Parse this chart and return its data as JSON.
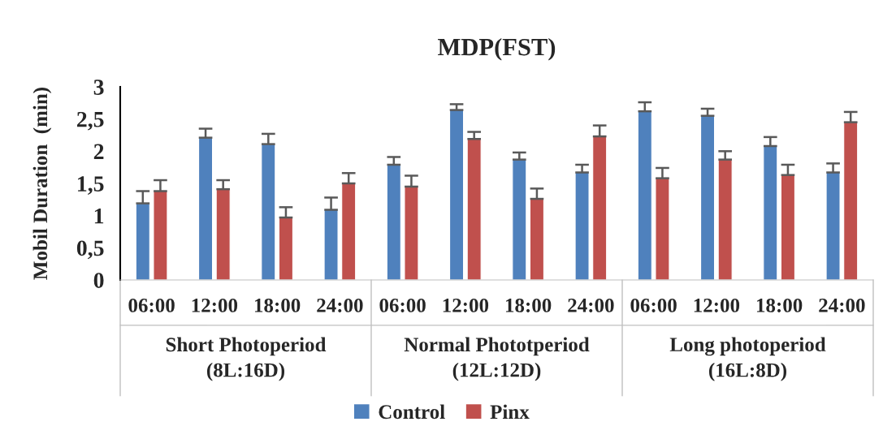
{
  "chart_data": {
    "type": "bar",
    "title": "MDP(FST)",
    "ylabel": "Mobil Duration  (min)",
    "categories": [
      "06:00",
      "12:00",
      "18:00",
      "24:00",
      "06:00",
      "12:00",
      "18:00",
      "24:00",
      "06:00",
      "12:00",
      "18:00",
      "24:00"
    ],
    "annotations": [
      "Short Photoperiod\n(8L:16D)",
      "Normal Phototperiod\n(12L:12D)",
      "Long photoperiod\n(16L:8D)"
    ],
    "series": [
      {
        "name": "Control",
        "color": "#4f81bd",
        "values": [
          1.19,
          2.21,
          2.11,
          1.09,
          1.79,
          2.64,
          1.87,
          1.67,
          2.62,
          2.55,
          2.08,
          1.67
        ],
        "errors": [
          [
            1.19,
            1.38
          ],
          [
            2.21,
            2.35
          ],
          [
            2.11,
            2.27
          ],
          [
            1.09,
            1.28
          ],
          [
            1.79,
            1.91
          ],
          [
            2.64,
            2.73
          ],
          [
            1.87,
            1.98
          ],
          [
            1.67,
            1.79
          ],
          [
            2.62,
            2.76
          ],
          [
            2.55,
            2.66
          ],
          [
            2.08,
            2.22
          ],
          [
            1.67,
            1.81
          ]
        ]
      },
      {
        "name": "Pinx",
        "color": "#c0504d",
        "values": [
          1.38,
          1.41,
          0.97,
          1.5,
          1.45,
          2.19,
          1.26,
          2.23,
          1.58,
          1.87,
          1.63,
          2.45
        ],
        "errors": [
          [
            1.38,
            1.55
          ],
          [
            1.41,
            1.55
          ],
          [
            0.97,
            1.13
          ],
          [
            1.5,
            1.66
          ],
          [
            1.45,
            1.62
          ],
          [
            2.19,
            2.3
          ],
          [
            1.26,
            1.42
          ],
          [
            2.23,
            2.4
          ],
          [
            1.58,
            1.74
          ],
          [
            1.87,
            2.0
          ],
          [
            1.63,
            1.79
          ],
          [
            2.45,
            2.61
          ]
        ]
      }
    ],
    "ylim": [
      0,
      3
    ],
    "yticks": [
      0,
      {
        "value": 0.5,
        "label": "0,5"
      },
      1,
      {
        "value": 1.5,
        "label": "1,5"
      },
      2,
      {
        "value": 2.5,
        "label": "2,5"
      },
      3
    ],
    "grid": false,
    "legend": "bottom"
  }
}
